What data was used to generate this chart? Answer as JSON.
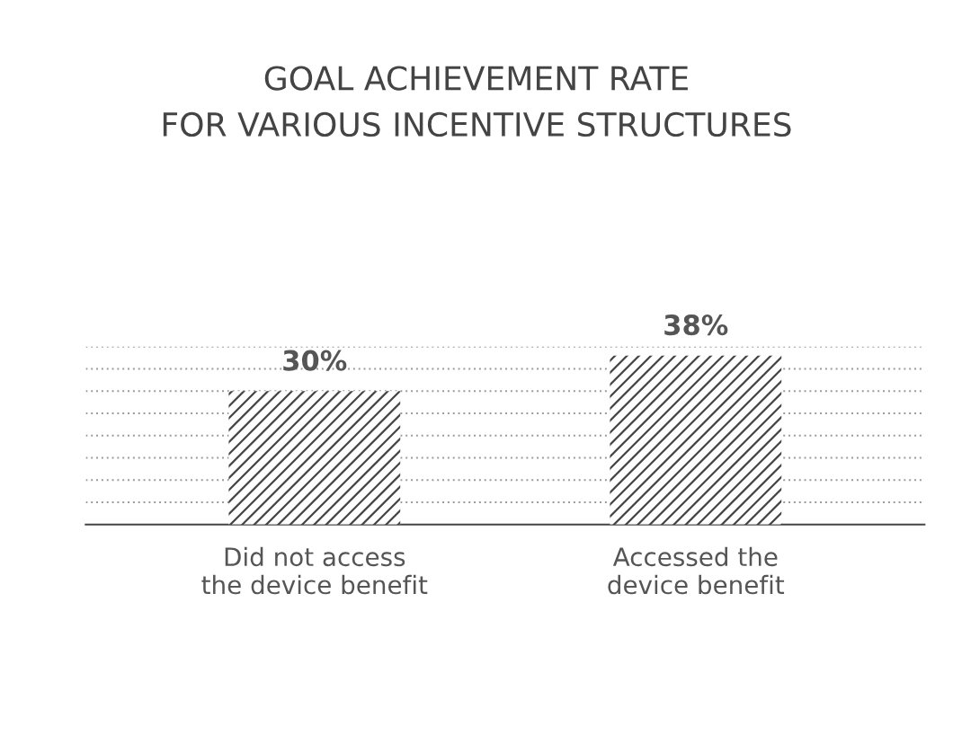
{
  "chart_data": {
    "type": "bar",
    "title": "GOAL ACHIEVEMENT RATE\nFOR VARIOUS INCENTIVE STRUCTURES",
    "categories": [
      "Did not access\nthe device benefit",
      "Accessed the\ndevice benefit"
    ],
    "values": [
      30,
      38
    ],
    "color": "#444444",
    "value_labels": [
      "30%",
      "38%"
    ],
    "ylim": [
      0,
      40
    ],
    "yticks": [
      {
        "value": 5,
        "label": null
      },
      {
        "value": 10,
        "label": null
      },
      {
        "value": 15,
        "label": null
      },
      {
        "value": 20,
        "label": null
      },
      {
        "value": 25,
        "label": null
      },
      {
        "value": 30,
        "label": null
      },
      {
        "value": 35,
        "label": null
      },
      {
        "value": 40,
        "label": null
      }
    ],
    "grid": "y",
    "tick_labels": "x"
  }
}
